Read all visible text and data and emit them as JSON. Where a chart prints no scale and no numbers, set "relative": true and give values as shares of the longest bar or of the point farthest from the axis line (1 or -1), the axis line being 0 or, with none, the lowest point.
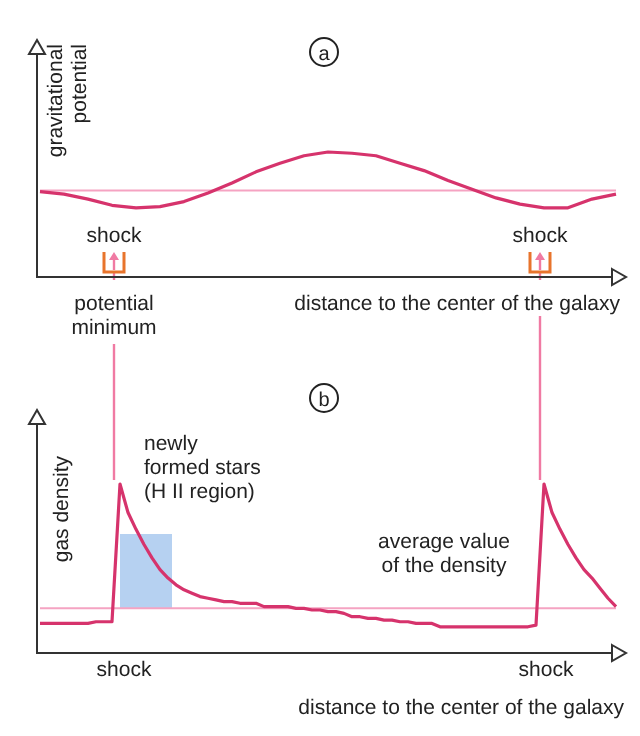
{
  "chart_data": [
    {
      "type": "line",
      "title": "a",
      "xlabel": "distance to the center of the galaxy",
      "ylabel": "gravitational\npotential",
      "relative": true,
      "categories": [
        null,
        null,
        null,
        null,
        null,
        null,
        null,
        null,
        null,
        null,
        null,
        null,
        null,
        null,
        null,
        null,
        null,
        null,
        null,
        null,
        null,
        null,
        null,
        null,
        null
      ],
      "series": [
        {
          "color": "#d6336c",
          "values": [
            0.68,
            0.66,
            0.62,
            0.57,
            0.55,
            0.56,
            0.6,
            0.67,
            0.75,
            0.84,
            0.91,
            0.97,
            1.0,
            0.99,
            0.97,
            0.91,
            0.85,
            0.77,
            0.7,
            0.63,
            0.58,
            0.55,
            0.55,
            0.62,
            0.66
          ]
        }
      ],
      "ref_lines": [
        {
          "axis": "y",
          "value": 0.69,
          "color": "#f5a3c2"
        }
      ],
      "annotations": [
        "shock",
        "shock",
        "potential\nminimum"
      ]
    },
    {
      "type": "line",
      "title": "b",
      "xlabel": "distance to the center of the galaxy",
      "ylabel": "gas density",
      "relative": true,
      "categories": [
        null,
        null,
        null,
        null,
        null,
        null,
        null,
        null,
        null,
        null,
        null,
        null,
        null,
        null,
        null,
        null,
        null,
        null,
        null,
        null,
        null,
        null,
        null,
        null,
        null,
        null,
        null,
        null,
        null,
        null,
        null,
        null,
        null,
        null,
        null,
        null,
        null,
        null,
        null,
        null,
        null,
        null,
        null,
        null,
        null,
        null,
        null,
        null,
        null,
        null,
        null,
        null,
        null,
        null,
        null,
        null,
        null,
        null,
        null,
        null,
        null,
        null,
        null,
        null,
        null,
        null,
        null,
        null,
        null,
        null,
        null,
        null,
        null
      ],
      "series": [
        {
          "color": "#d6336c",
          "values": [
            0.17,
            0.17,
            0.17,
            0.17,
            0.17,
            0.17,
            0.17,
            0.18,
            0.18,
            0.18,
            1.0,
            0.83,
            0.73,
            0.64,
            0.56,
            0.49,
            0.44,
            0.4,
            0.37,
            0.35,
            0.33,
            0.32,
            0.31,
            0.3,
            0.3,
            0.29,
            0.29,
            0.29,
            0.27,
            0.27,
            0.27,
            0.27,
            0.26,
            0.26,
            0.25,
            0.25,
            0.24,
            0.24,
            0.23,
            0.21,
            0.21,
            0.2,
            0.2,
            0.19,
            0.19,
            0.18,
            0.18,
            0.17,
            0.17,
            0.17,
            0.15,
            0.15,
            0.15,
            0.15,
            0.15,
            0.15,
            0.15,
            0.15,
            0.15,
            0.15,
            0.15,
            0.15,
            0.16,
            1.0,
            0.83,
            0.73,
            0.64,
            0.56,
            0.49,
            0.44,
            0.38,
            0.32,
            0.27
          ]
        }
      ],
      "ref_lines": [
        {
          "axis": "y",
          "value": 0.26,
          "label": "average value\nof the density",
          "color": "#f5a3c2"
        }
      ],
      "annotations": [
        "newly\nformed stars\n(H II region)",
        "shock",
        "shock"
      ]
    }
  ]
}
